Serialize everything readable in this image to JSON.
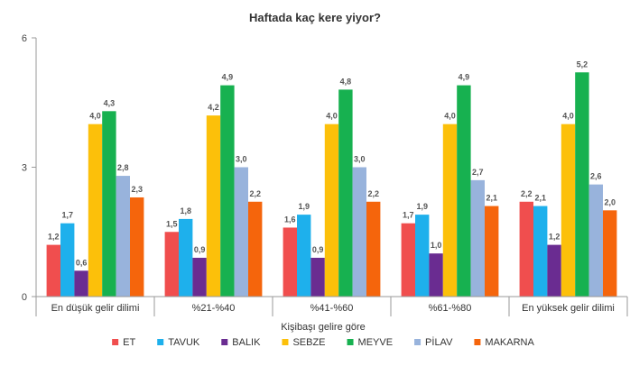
{
  "chart_data": {
    "type": "bar",
    "title": "Haftada kaç kere yiyor?",
    "xlabel": "Kişibaşı gelire göre",
    "ylabel": "",
    "ylim": [
      0,
      6
    ],
    "yticks": [
      "0",
      "3",
      "6"
    ],
    "grid": false,
    "legend_position": "bottom",
    "categories": [
      "En düşük gelir dilimi",
      "%21-%40",
      "%41-%60",
      "%61-%80",
      "En yüksek gelir dilimi"
    ],
    "series": [
      {
        "name": "ET",
        "color": "#f04e4e",
        "values": [
          1.2,
          1.5,
          1.6,
          1.7,
          2.2
        ],
        "labels": [
          "1,2",
          "1,5",
          "1,6",
          "1,7",
          "2,2"
        ]
      },
      {
        "name": "TAVUK",
        "color": "#1eb0ec",
        "values": [
          1.7,
          1.8,
          1.9,
          1.9,
          2.1
        ],
        "labels": [
          "1,7",
          "1,8",
          "1,9",
          "1,9",
          "2,1"
        ]
      },
      {
        "name": "BALIK",
        "color": "#6a2c91",
        "values": [
          0.6,
          0.9,
          0.9,
          1.0,
          1.2
        ],
        "labels": [
          "0,6",
          "0,9",
          "0,9",
          "1,0",
          "1,2"
        ]
      },
      {
        "name": "SEBZE",
        "color": "#fcc00a",
        "values": [
          4.0,
          4.2,
          4.0,
          4.0,
          4.0
        ],
        "labels": [
          "4,0",
          "4,2",
          "4,0",
          "4,0",
          "4,0"
        ]
      },
      {
        "name": "MEYVE",
        "color": "#17b150",
        "values": [
          4.3,
          4.9,
          4.8,
          4.9,
          5.2
        ],
        "labels": [
          "4,3",
          "4,9",
          "4,8",
          "4,9",
          "5,2"
        ]
      },
      {
        "name": "PİLAV",
        "color": "#98b3dc",
        "values": [
          2.8,
          3.0,
          3.0,
          2.7,
          2.6
        ],
        "labels": [
          "2,8",
          "3,0",
          "3,0",
          "2,7",
          "2,6"
        ]
      },
      {
        "name": "MAKARNA",
        "color": "#f5650c",
        "values": [
          2.3,
          2.2,
          2.2,
          2.1,
          2.0
        ],
        "labels": [
          "2,3",
          "2,2",
          "2,2",
          "2,1",
          "2,0"
        ]
      }
    ]
  }
}
